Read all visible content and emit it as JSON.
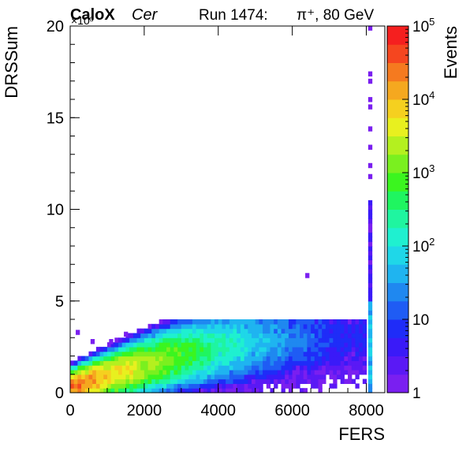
{
  "chart_data": {
    "type": "heatmap",
    "title_left": "CaloX",
    "title_mode": "Cer",
    "title_run": "Run 1474:",
    "title_beam": "π⁺, 80 GeV",
    "xlabel": "FERS",
    "ylabel": "DRSSum",
    "colorbar_label": "Events",
    "y_multiplier": "×10³",
    "xlim": [
      0,
      8500
    ],
    "ylim": [
      0,
      20000
    ],
    "zlim": [
      1,
      100000
    ],
    "z_scale": "log",
    "x_ticks": [
      0,
      2000,
      4000,
      6000,
      8000
    ],
    "y_ticks": [
      0,
      5,
      10,
      15,
      20
    ],
    "z_ticks": [
      {
        "base": "1",
        "exp": ""
      },
      {
        "base": "10",
        "exp": ""
      },
      {
        "base": "10",
        "exp": "2"
      },
      {
        "base": "10",
        "exp": "3"
      },
      {
        "base": "10",
        "exp": "4"
      },
      {
        "base": "10",
        "exp": "5"
      }
    ],
    "z_tick_values": [
      1,
      10,
      100,
      1000,
      10000,
      100000
    ],
    "palette": [
      "#7a1ff0",
      "#5a19f5",
      "#3a1af8",
      "#1f2cf8",
      "#1f5cf4",
      "#1f88f0",
      "#1fb4f0",
      "#1fd7e8",
      "#1ff0d0",
      "#1ff5a0",
      "#1ff560",
      "#3bf51f",
      "#7af01f",
      "#b4f01f",
      "#e8f01f",
      "#f5d01f",
      "#f5a81f",
      "#f57a1f",
      "#f5461f",
      "#f51f1f"
    ],
    "bins": {
      "x_width": 100,
      "y_width": 250
    },
    "band": {
      "description_points_x": [
        0,
        1000,
        2000,
        3000,
        4000,
        5000,
        6000,
        7000,
        8000
      ],
      "center_y": [
        300,
        900,
        1500,
        2050,
        2450,
        2700,
        2900,
        3000,
        3100
      ],
      "peak_events": [
        30000,
        8000,
        2500,
        800,
        200,
        60,
        20,
        8,
        5
      ]
    },
    "saturation_column": {
      "x": 8100,
      "dense_y_range": [
        0,
        5000
      ],
      "sparse_y_range": [
        5000,
        10500
      ],
      "outliers_y": [
        11800,
        12400,
        13400,
        14400,
        15600,
        16000,
        17000,
        17400,
        19900
      ]
    },
    "isolated_points": [
      {
        "x": 6400,
        "y": 6400
      },
      {
        "x": 200,
        "y": 3300
      },
      {
        "x": 600,
        "y": 2800
      },
      {
        "x": 1100,
        "y": 2800
      },
      {
        "x": 1500,
        "y": 3200
      }
    ]
  }
}
